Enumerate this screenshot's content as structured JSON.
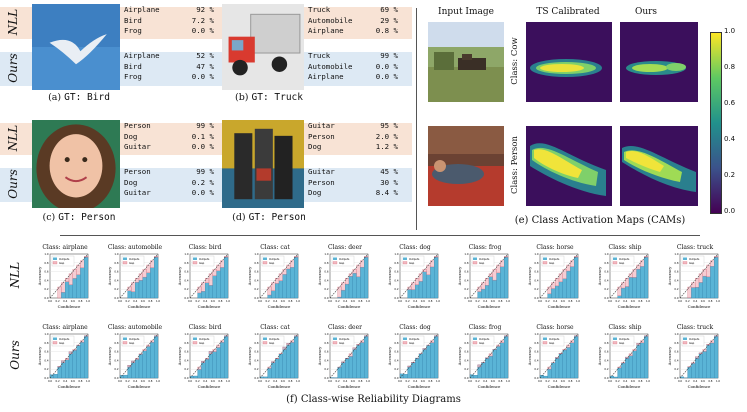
{
  "colors": {
    "nll_band": "#f8e3d5",
    "ours_band": "#dde9f4",
    "outputs_bar": "#5ab4d6",
    "gap_bar": "#f2b8c0",
    "gap_edge": "#d66b7a",
    "diagonal": "#333333"
  },
  "row_labels": {
    "nll": "NLL",
    "ours": "Ours"
  },
  "examples": [
    {
      "caption_prefix": "(a)",
      "caption_gt": "GT: Bird",
      "nll": [
        [
          "Airplane",
          "92 %"
        ],
        [
          "Bird",
          "7.2 %"
        ],
        [
          "Frog",
          "0.0 %"
        ]
      ],
      "ours": [
        [
          "Airplane",
          "52 %"
        ],
        [
          "Bird",
          "47 %"
        ],
        [
          "Frog",
          "0.0 %"
        ]
      ]
    },
    {
      "caption_prefix": "(b)",
      "caption_gt": "GT: Truck",
      "nll": [
        [
          "Truck",
          "69 %"
        ],
        [
          "Automobile",
          "29 %"
        ],
        [
          "Airplane",
          "0.8 %"
        ]
      ],
      "ours": [
        [
          "Truck",
          "99 %"
        ],
        [
          "Automobile",
          "0.0 %"
        ],
        [
          "Airplane",
          "0.0 %"
        ]
      ]
    },
    {
      "caption_prefix": "(c)",
      "caption_gt": "GT: Person",
      "nll": [
        [
          "Person",
          "99 %"
        ],
        [
          "Dog",
          "0.1 %"
        ],
        [
          "Guitar",
          "0.0 %"
        ]
      ],
      "ours": [
        [
          "Person",
          "99 %"
        ],
        [
          "Dog",
          "0.2 %"
        ],
        [
          "Guitar",
          "0.0 %"
        ]
      ]
    },
    {
      "caption_prefix": "(d)",
      "caption_gt": "GT: Person",
      "nll": [
        [
          "Guitar",
          "95 %"
        ],
        [
          "Person",
          "2.0 %"
        ],
        [
          "Dog",
          "1.2 %"
        ]
      ],
      "ours": [
        [
          "Guitar",
          "45 %"
        ],
        [
          "Person",
          "30 %"
        ],
        [
          "Dog",
          "8.4 %"
        ]
      ]
    }
  ],
  "cam": {
    "col_titles": [
      "Input Image",
      "TS Calibrated",
      "Ours"
    ],
    "row_labels": [
      "Class: Cow",
      "Class: Person"
    ],
    "colorbar_ticks": [
      "1.0",
      "0.8",
      "0.6",
      "0.4",
      "0.2",
      "0.0"
    ],
    "caption": "(e) Class Activation Maps (CAMs)"
  },
  "reliability": {
    "classes": [
      "airplane",
      "automobile",
      "bird",
      "cat",
      "deer",
      "dog",
      "frog",
      "horse",
      "ship",
      "truck"
    ],
    "title_prefix": "Class: ",
    "xlabel": "Confidence",
    "ylabel": "Accuracy",
    "legend": [
      "Outputs",
      "Gap"
    ],
    "ticks": [
      "0.0",
      "0.2",
      "0.4",
      "0.6",
      "0.8",
      "1.0"
    ],
    "caption": "(f) Class-wise Reliability Diagrams"
  },
  "chart_data": [
    {
      "type": "bar",
      "title": "Class: airplane",
      "row": "NLL",
      "x": [
        0.05,
        0.15,
        0.25,
        0.35,
        0.45,
        0.55,
        0.65,
        0.75,
        0.85,
        0.95
      ],
      "series": [
        {
          "name": "Outputs",
          "values": [
            0.0,
            0.0,
            0.22,
            0.26,
            0.38,
            0.45,
            0.48,
            0.55,
            0.68,
            0.93
          ]
        },
        {
          "name": "Gap",
          "values": [
            0.0,
            0.0,
            0.03,
            0.09,
            0.07,
            0.1,
            0.17,
            0.2,
            0.17,
            0.02
          ]
        }
      ],
      "xlabel": "Confidence",
      "ylabel": "Accuracy",
      "xlim": [
        0,
        1
      ],
      "ylim": [
        0,
        1
      ]
    }
  ]
}
